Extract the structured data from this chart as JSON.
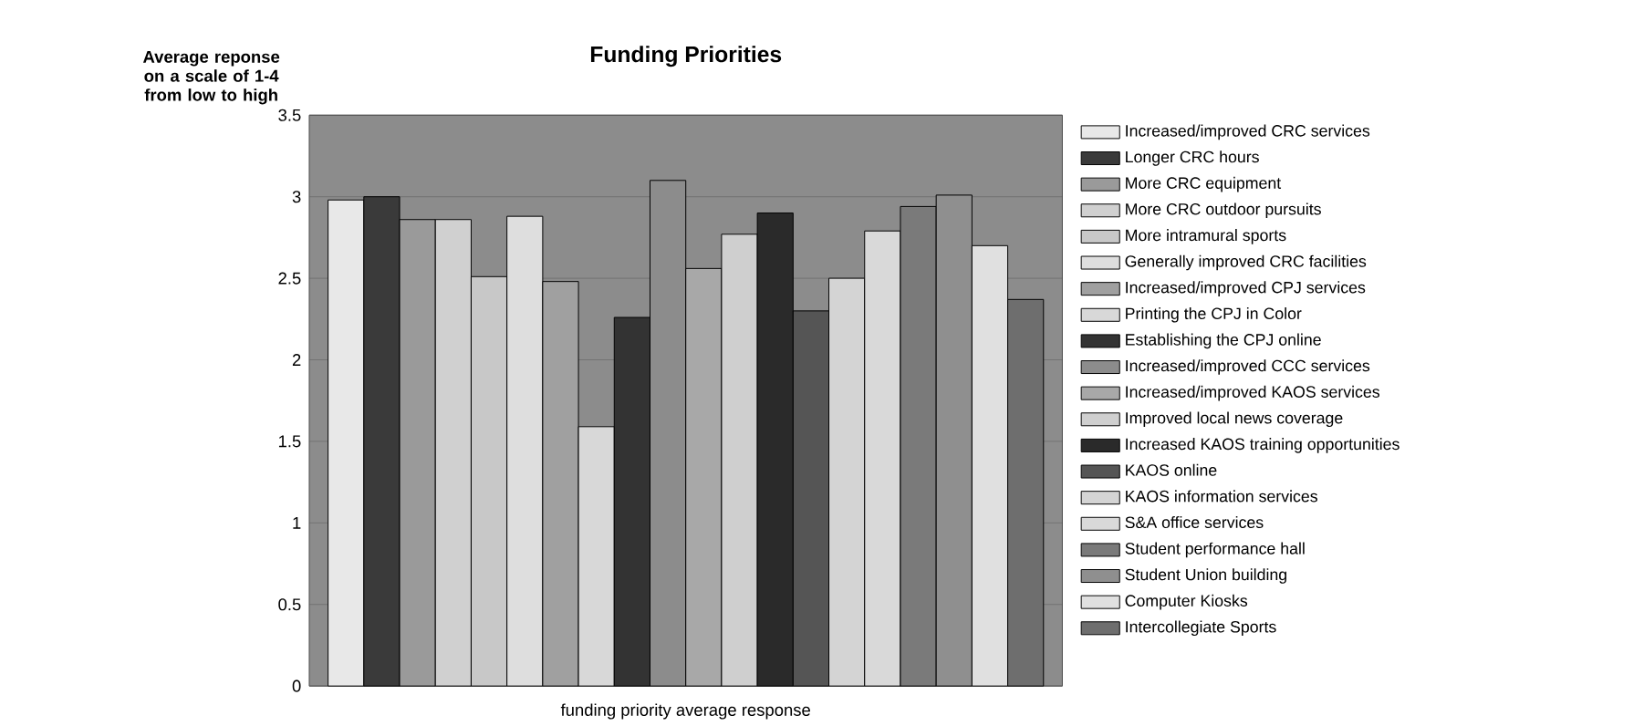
{
  "chart_data": {
    "type": "bar",
    "title": "Funding Priorities",
    "ylabel": "Average reponse on a scale of 1-4 from low to high",
    "categories": [
      "funding priority average response"
    ],
    "series": [
      {
        "name": "Increased/improved CRC services",
        "color": "#e8e8e8",
        "values": [
          2.98
        ]
      },
      {
        "name": "Longer CRC hours",
        "color": "#3a3a3a",
        "values": [
          3.0
        ]
      },
      {
        "name": "More CRC equipment",
        "color": "#9a9a9a",
        "values": [
          2.86
        ]
      },
      {
        "name": "More CRC outdoor pursuits",
        "color": "#d0d0d0",
        "values": [
          2.86
        ]
      },
      {
        "name": "More intramural sports",
        "color": "#c8c8c8",
        "values": [
          2.51
        ]
      },
      {
        "name": "Generally improved CRC facilities",
        "color": "#dedede",
        "values": [
          2.88
        ]
      },
      {
        "name": "Increased/improved CPJ services",
        "color": "#a0a0a0",
        "values": [
          2.48
        ]
      },
      {
        "name": "Printing the CPJ in Color",
        "color": "#d8d8d8",
        "values": [
          1.59
        ]
      },
      {
        "name": "Establishing the CPJ online",
        "color": "#333333",
        "values": [
          2.26
        ]
      },
      {
        "name": "Increased/improved CCC services",
        "color": "#8c8c8c",
        "values": [
          3.1
        ]
      },
      {
        "name": "Increased/improved KAOS services",
        "color": "#a8a8a8",
        "values": [
          2.56
        ]
      },
      {
        "name": "Improved local news coverage",
        "color": "#cfcfcf",
        "values": [
          2.77
        ]
      },
      {
        "name": "Increased KAOS training opportunities",
        "color": "#2a2a2a",
        "values": [
          2.9
        ]
      },
      {
        "name": "KAOS online",
        "color": "#555555",
        "values": [
          2.3
        ]
      },
      {
        "name": "KAOS information services",
        "color": "#d4d4d4",
        "values": [
          2.5
        ]
      },
      {
        "name": "S&A office services",
        "color": "#d9d9d9",
        "values": [
          2.79
        ]
      },
      {
        "name": "Student performance hall",
        "color": "#7a7a7a",
        "values": [
          2.94
        ]
      },
      {
        "name": "Student Union building",
        "color": "#8f8f8f",
        "values": [
          3.01
        ]
      },
      {
        "name": "Computer Kiosks",
        "color": "#e0e0e0",
        "values": [
          2.7
        ]
      },
      {
        "name": "Intercollegiate Sports",
        "color": "#6e6e6e",
        "values": [
          2.37
        ]
      }
    ],
    "ylim": [
      0,
      3.5
    ],
    "yticks": [
      0,
      0.5,
      1,
      1.5,
      2,
      2.5,
      3,
      3.5
    ],
    "grid": "y",
    "legend": "right"
  }
}
